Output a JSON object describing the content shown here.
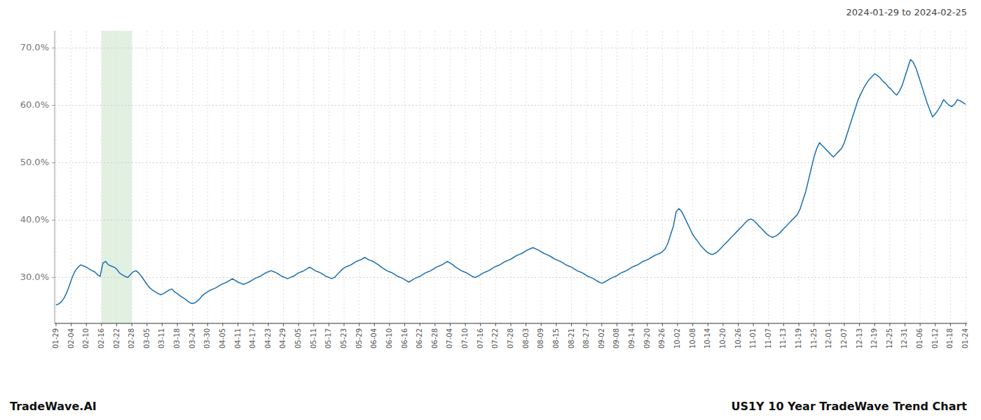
{
  "chart_data": {
    "type": "line",
    "title": "US1Y 10 Year TradeWave Trend Chart",
    "subtitle": "2024-01-29 to 2024-02-25",
    "annotations": [
      "TradeWave.AI"
    ],
    "color": "#1a6faf",
    "grid": true,
    "shaded_region": {
      "from": 16.5,
      "to": 27.5,
      "color": "#d6ead6"
    },
    "xlim": [
      -0.5,
      330.5
    ],
    "xticks": [
      {
        "value": 0,
        "label": "01-29"
      },
      {
        "value": 5.5,
        "label": "02-04"
      },
      {
        "value": 11,
        "label": "02-10"
      },
      {
        "value": 16.5,
        "label": "02-16"
      },
      {
        "value": 22,
        "label": "02-22"
      },
      {
        "value": 27.5,
        "label": "02-28"
      },
      {
        "value": 33,
        "label": "03-05"
      },
      {
        "value": 38.5,
        "label": "03-11"
      },
      {
        "value": 44,
        "label": "03-18"
      },
      {
        "value": 49.5,
        "label": "03-24"
      },
      {
        "value": 55,
        "label": "03-30"
      },
      {
        "value": 60.5,
        "label": "04-05"
      },
      {
        "value": 66,
        "label": "04-11"
      },
      {
        "value": 71.5,
        "label": "04-17"
      },
      {
        "value": 77,
        "label": "04-23"
      },
      {
        "value": 82.5,
        "label": "04-29"
      },
      {
        "value": 88,
        "label": "05-05"
      },
      {
        "value": 93.5,
        "label": "05-11"
      },
      {
        "value": 99,
        "label": "05-17"
      },
      {
        "value": 104.5,
        "label": "05-23"
      },
      {
        "value": 110,
        "label": "05-29"
      },
      {
        "value": 115.5,
        "label": "06-04"
      },
      {
        "value": 121,
        "label": "06-10"
      },
      {
        "value": 126.5,
        "label": "06-16"
      },
      {
        "value": 132,
        "label": "06-22"
      },
      {
        "value": 137.5,
        "label": "06-28"
      },
      {
        "value": 143,
        "label": "07-04"
      },
      {
        "value": 148.5,
        "label": "07-10"
      },
      {
        "value": 154,
        "label": "07-16"
      },
      {
        "value": 159.5,
        "label": "07-22"
      },
      {
        "value": 165,
        "label": "07-28"
      },
      {
        "value": 170.5,
        "label": "08-03"
      },
      {
        "value": 176,
        "label": "08-09"
      },
      {
        "value": 181.5,
        "label": "08-15"
      },
      {
        "value": 187,
        "label": "08-21"
      },
      {
        "value": 192.5,
        "label": "08-27"
      },
      {
        "value": 198,
        "label": "09-02"
      },
      {
        "value": 203.5,
        "label": "09-08"
      },
      {
        "value": 209,
        "label": "09-14"
      },
      {
        "value": 214.5,
        "label": "09-20"
      },
      {
        "value": 220,
        "label": "09-26"
      },
      {
        "value": 225.5,
        "label": "10-02"
      },
      {
        "value": 231,
        "label": "10-08"
      },
      {
        "value": 236.5,
        "label": "10-14"
      },
      {
        "value": 242,
        "label": "10-20"
      },
      {
        "value": 247.5,
        "label": "10-26"
      },
      {
        "value": 253,
        "label": "11-01"
      },
      {
        "value": 258.5,
        "label": "11-07"
      },
      {
        "value": 264,
        "label": "11-13"
      },
      {
        "value": 269.5,
        "label": "11-19"
      },
      {
        "value": 275,
        "label": "11-25"
      },
      {
        "value": 280.5,
        "label": "12-01"
      },
      {
        "value": 286,
        "label": "12-07"
      },
      {
        "value": 291.5,
        "label": "12-13"
      },
      {
        "value": 297,
        "label": "12-19"
      },
      {
        "value": 302.5,
        "label": "12-25"
      },
      {
        "value": 308,
        "label": "12-31"
      },
      {
        "value": 313.5,
        "label": "01-06"
      },
      {
        "value": 319,
        "label": "01-12"
      },
      {
        "value": 324.5,
        "label": "01-18"
      },
      {
        "value": 330,
        "label": "01-24"
      }
    ],
    "ylim": [
      22.0,
      73.0
    ],
    "yticks": [
      {
        "value": 30.0,
        "label": "30.0%"
      },
      {
        "value": 40.0,
        "label": "40.0%"
      },
      {
        "value": 50.0,
        "label": "50.0%"
      },
      {
        "value": 60.0,
        "label": "60.0%"
      },
      {
        "value": 70.0,
        "label": "70.0%"
      }
    ],
    "values": [
      25.2,
      25.4,
      25.8,
      26.5,
      27.5,
      28.8,
      30.2,
      31.2,
      31.8,
      32.2,
      32.0,
      31.8,
      31.5,
      31.2,
      31.0,
      30.5,
      30.2,
      32.5,
      32.8,
      32.2,
      32.0,
      31.8,
      31.5,
      30.8,
      30.5,
      30.2,
      30.0,
      30.5,
      31.0,
      31.2,
      30.8,
      30.2,
      29.5,
      28.8,
      28.2,
      27.8,
      27.5,
      27.2,
      27.0,
      27.2,
      27.5,
      27.8,
      28.0,
      27.5,
      27.2,
      26.8,
      26.5,
      26.2,
      25.8,
      25.5,
      25.5,
      25.8,
      26.2,
      26.8,
      27.2,
      27.5,
      27.8,
      28.0,
      28.2,
      28.5,
      28.8,
      29.0,
      29.2,
      29.5,
      29.8,
      29.5,
      29.2,
      29.0,
      28.8,
      29.0,
      29.2,
      29.5,
      29.8,
      30.0,
      30.2,
      30.5,
      30.8,
      31.0,
      31.2,
      31.0,
      30.8,
      30.5,
      30.2,
      30.0,
      29.8,
      30.0,
      30.2,
      30.5,
      30.8,
      31.0,
      31.2,
      31.5,
      31.8,
      31.5,
      31.2,
      31.0,
      30.8,
      30.5,
      30.2,
      30.0,
      29.8,
      30.0,
      30.5,
      31.0,
      31.5,
      31.8,
      32.0,
      32.2,
      32.5,
      32.8,
      33.0,
      33.2,
      33.5,
      33.2,
      33.0,
      32.8,
      32.5,
      32.2,
      31.8,
      31.5,
      31.2,
      31.0,
      30.8,
      30.5,
      30.2,
      30.0,
      29.8,
      29.5,
      29.2,
      29.5,
      29.8,
      30.0,
      30.2,
      30.5,
      30.8,
      31.0,
      31.2,
      31.5,
      31.8,
      32.0,
      32.2,
      32.5,
      32.8,
      32.5,
      32.2,
      31.8,
      31.5,
      31.2,
      31.0,
      30.8,
      30.5,
      30.2,
      30.0,
      30.2,
      30.5,
      30.8,
      31.0,
      31.2,
      31.5,
      31.8,
      32.0,
      32.2,
      32.5,
      32.8,
      33.0,
      33.2,
      33.5,
      33.8,
      34.0,
      34.2,
      34.5,
      34.8,
      35.0,
      35.2,
      35.0,
      34.8,
      34.5,
      34.2,
      34.0,
      33.8,
      33.5,
      33.2,
      33.0,
      32.8,
      32.5,
      32.2,
      32.0,
      31.8,
      31.5,
      31.2,
      31.0,
      30.8,
      30.5,
      30.2,
      30.0,
      29.8,
      29.5,
      29.2,
      29.0,
      29.2,
      29.5,
      29.8,
      30.0,
      30.2,
      30.5,
      30.8,
      31.0,
      31.2,
      31.5,
      31.8,
      32.0,
      32.2,
      32.5,
      32.8,
      33.0,
      33.2,
      33.5,
      33.8,
      34.0,
      34.2,
      34.5,
      35.0,
      36.0,
      37.5,
      39.0,
      41.5,
      42.0,
      41.5,
      40.5,
      39.5,
      38.5,
      37.5,
      36.8,
      36.2,
      35.5,
      35.0,
      34.5,
      34.2,
      34.0,
      34.2,
      34.5,
      35.0,
      35.5,
      36.0,
      36.5,
      37.0,
      37.5,
      38.0,
      38.5,
      39.0,
      39.5,
      40.0,
      40.2,
      40.0,
      39.5,
      39.0,
      38.5,
      38.0,
      37.5,
      37.2,
      37.0,
      37.2,
      37.5,
      38.0,
      38.5,
      39.0,
      39.5,
      40.0,
      40.5,
      41.0,
      42.0,
      43.5,
      45.0,
      47.0,
      49.0,
      51.0,
      52.5,
      53.5,
      53.0,
      52.5,
      52.0,
      51.5,
      51.0,
      51.5,
      52.0,
      52.5,
      53.5,
      55.0,
      56.5,
      58.0,
      59.5,
      61.0,
      62.0,
      63.0,
      63.8,
      64.5,
      65.0,
      65.5,
      65.2,
      64.8,
      64.2,
      63.8,
      63.2,
      62.8,
      62.2,
      61.8,
      62.5,
      63.5,
      65.0,
      66.5,
      68.0,
      67.5,
      66.5,
      65.0,
      63.5,
      62.0,
      60.5,
      59.2,
      58.0,
      58.5,
      59.2,
      60.0,
      61.0,
      60.5,
      60.0,
      59.8,
      60.2,
      61.0,
      60.8,
      60.5,
      60.2
    ]
  }
}
